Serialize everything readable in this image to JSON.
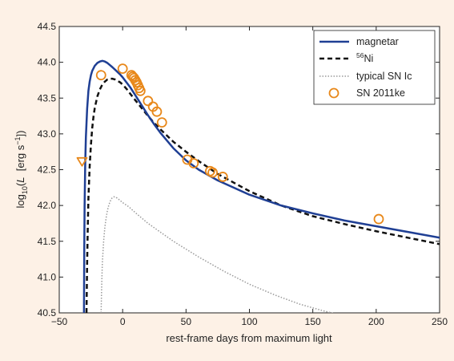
{
  "chart_data": {
    "type": "line",
    "title": "",
    "xlabel": "rest-frame days from maximum light",
    "ylabel_parts": {
      "pre": "log",
      "sub": "10",
      "mid": "(",
      "italic": "L",
      "post": "  [erg s",
      "sup": "−1",
      "end": "])"
    },
    "xlim": [
      -50,
      250
    ],
    "ylim": [
      40.5,
      44.5
    ],
    "x_ticks": [
      -50,
      0,
      50,
      100,
      150,
      200,
      250
    ],
    "x_tick_labels": [
      "−50",
      "0",
      "50",
      "100",
      "150",
      "200",
      "250"
    ],
    "y_ticks": [
      40.5,
      41.0,
      41.5,
      42.0,
      42.5,
      43.0,
      43.5,
      44.0,
      44.5
    ],
    "y_tick_labels": [
      "40.5",
      "41.0",
      "41.5",
      "42.0",
      "42.5",
      "43.0",
      "43.5",
      "44.0",
      "44.5"
    ],
    "grid": false,
    "legend_position": "top-right",
    "series": [
      {
        "name": "magnetar",
        "style": "solid",
        "color": "#1f3f94",
        "x": [
          -30.5,
          -30.3,
          -30,
          -29.5,
          -29,
          -28,
          -27,
          -26,
          -25,
          -24,
          -22,
          -20,
          -18,
          -16,
          -14,
          -12,
          -10,
          -8,
          -5,
          -2,
          0,
          3,
          6,
          10,
          15,
          20,
          25,
          30,
          40,
          50,
          60,
          75,
          100,
          125,
          150,
          175,
          200,
          225,
          250
        ],
        "y": [
          40.5,
          41.3,
          42.0,
          42.6,
          42.95,
          43.35,
          43.6,
          43.73,
          43.82,
          43.88,
          43.95,
          43.99,
          44.01,
          44.02,
          44.01,
          43.99,
          43.96,
          43.93,
          43.88,
          43.83,
          43.79,
          43.72,
          43.65,
          43.54,
          43.4,
          43.26,
          43.13,
          43.01,
          42.8,
          42.63,
          42.5,
          42.35,
          42.15,
          42.0,
          41.89,
          41.79,
          41.71,
          41.63,
          41.55
        ]
      },
      {
        "name": "⁵⁶Ni",
        "name_sup": "56",
        "name_base": "Ni",
        "style": "dashed",
        "color": "#111111",
        "x": [
          -28.5,
          -28,
          -27.5,
          -27,
          -26,
          -25,
          -24,
          -23,
          -22,
          -20,
          -18,
          -16,
          -14,
          -12,
          -10,
          -8,
          -6,
          -4,
          -2,
          0,
          3,
          6,
          10,
          15,
          20,
          25,
          30,
          40,
          50,
          60,
          75,
          100,
          125,
          150,
          175,
          200,
          225,
          250
        ],
        "y": [
          40.5,
          41.2,
          41.7,
          42.1,
          42.55,
          42.85,
          43.08,
          43.24,
          43.36,
          43.52,
          43.62,
          43.69,
          43.73,
          43.76,
          43.77,
          43.77,
          43.76,
          43.74,
          43.72,
          43.69,
          43.63,
          43.56,
          43.47,
          43.36,
          43.25,
          43.15,
          43.06,
          42.89,
          42.75,
          42.62,
          42.44,
          42.2,
          42.0,
          41.85,
          41.74,
          41.64,
          41.55,
          41.46
        ]
      },
      {
        "name": "typical SN Ic",
        "style": "dotted",
        "color": "#9a9a9a",
        "x": [
          -17,
          -16.5,
          -16,
          -15,
          -14,
          -13,
          -12,
          -11,
          -10,
          -9,
          -8,
          -7,
          -6,
          -4,
          -2,
          0,
          5,
          10,
          20,
          40,
          60,
          80,
          100,
          120,
          140,
          160,
          170
        ],
        "y": [
          40.5,
          40.9,
          41.2,
          41.5,
          41.7,
          41.83,
          41.93,
          42.0,
          42.05,
          42.09,
          42.11,
          42.12,
          42.12,
          42.1,
          42.07,
          42.04,
          41.98,
          41.9,
          41.75,
          41.5,
          41.28,
          41.08,
          40.9,
          40.75,
          40.62,
          40.52,
          40.48
        ]
      }
    ],
    "observations": {
      "name": "SN 2011ke",
      "color": "#e8881a",
      "x": [
        -17,
        0,
        7,
        8,
        9,
        10,
        11,
        12,
        13,
        14,
        20,
        24,
        27,
        31,
        51,
        56,
        69,
        71,
        79,
        202
      ],
      "y": [
        43.82,
        43.91,
        43.82,
        43.8,
        43.78,
        43.75,
        43.72,
        43.68,
        43.64,
        43.6,
        43.46,
        43.38,
        43.31,
        43.16,
        42.64,
        42.59,
        42.48,
        42.46,
        42.4,
        41.81
      ]
    },
    "upper_limit": {
      "x": -32,
      "y": 42.62,
      "color": "#e8881a",
      "marker": "triangle-down"
    }
  }
}
